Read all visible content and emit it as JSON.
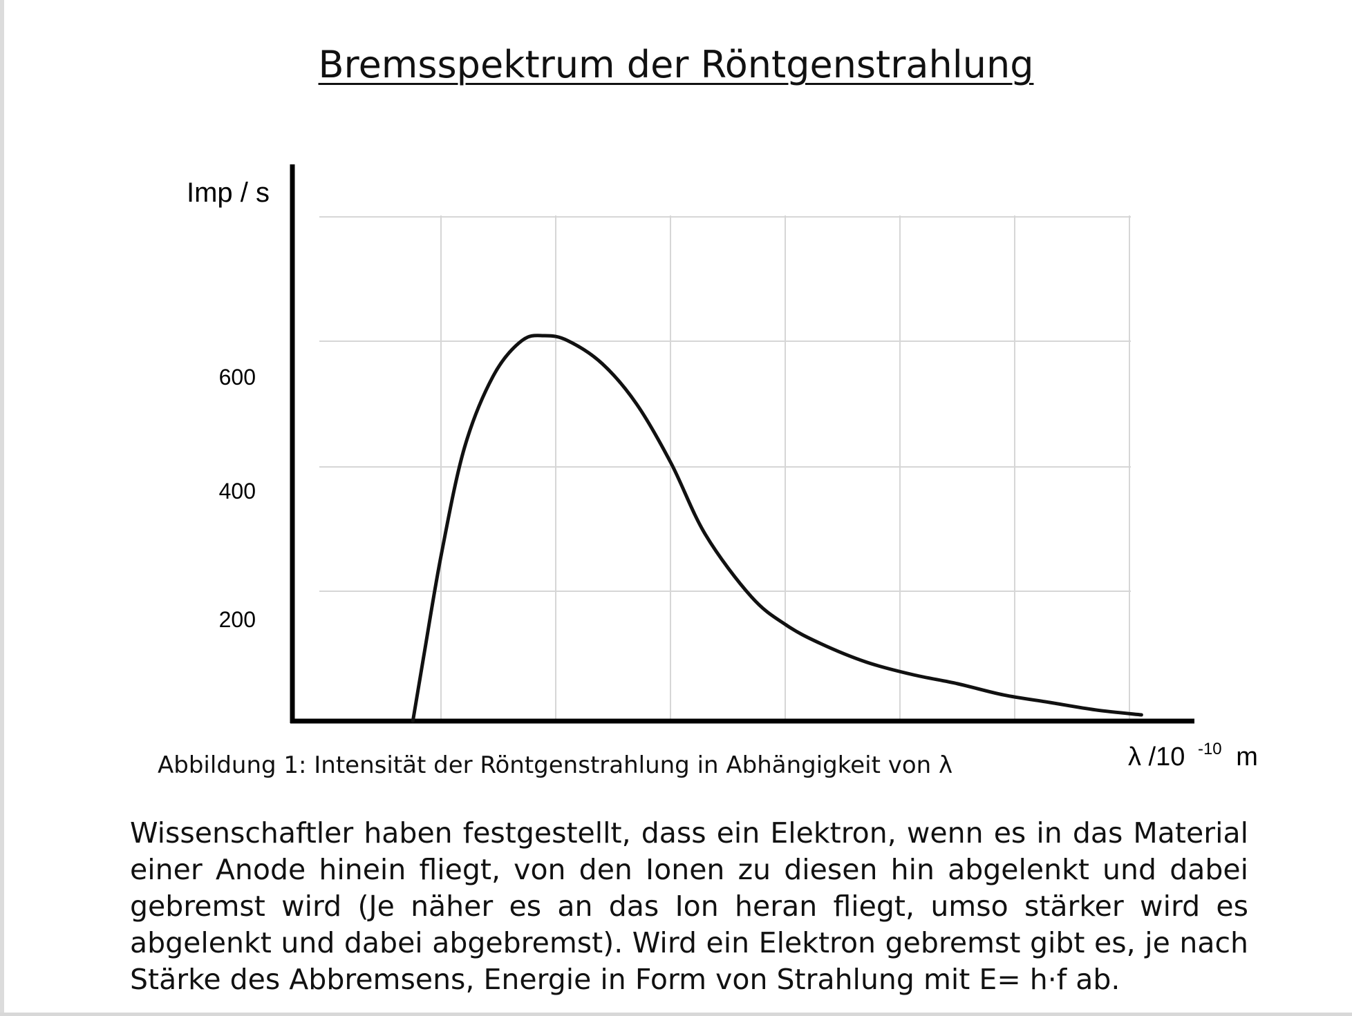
{
  "title": "Bremsspektrum der Röntgenstrahlung",
  "chart_data": {
    "type": "line",
    "ylabel": "Imp / s",
    "xlabel_main": "λ /10",
    "xlabel_exponent": "-10",
    "xlabel_unit": "m",
    "yticks": [
      200,
      400,
      600
    ],
    "xlim": [
      0,
      8
    ],
    "ylim": [
      0,
      800
    ],
    "grid": true,
    "series": [
      {
        "x": [
          1.05,
          1.15,
          1.3,
          1.5,
          1.75,
          2.0,
          2.2,
          2.4,
          2.7,
          3.0,
          3.3,
          3.6,
          4.0,
          4.3,
          4.6,
          5.0,
          5.4,
          5.8,
          6.2,
          6.6,
          7.0,
          7.4
        ],
        "y": [
          0,
          110,
          270,
          440,
          555,
          612,
          620,
          612,
          575,
          510,
          415,
          300,
          200,
          155,
          125,
          95,
          75,
          60,
          42,
          30,
          18,
          10
        ]
      }
    ]
  },
  "caption": "Abbildung 1: Intensität der Röntgenstrahlung in Abhängigkeit von λ",
  "paragraph": "Wissenschaftler haben festgestellt, dass ein Elektron, wenn es in das Material einer Anode hinein fliegt, von den Ionen zu diesen hin abgelenkt und dabei gebremst wird (Je näher es an das Ion heran fliegt, umso stärker wird es abgelenkt und dabei abgebremst). Wird ein Elektron gebremst gibt es, je nach Stärke des Abbremsens, Energie in Form von Strahlung mit E= h·f ab."
}
